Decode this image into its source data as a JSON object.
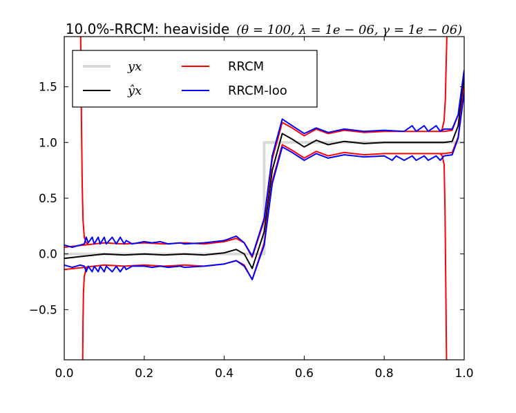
{
  "chart_data": {
    "type": "line",
    "title_text": "10.0%-RRCM: heaviside",
    "title_params": "(θ = 100, λ = 1e − 06, γ = 1e − 06)",
    "xlim": [
      0.0,
      1.0
    ],
    "ylim": [
      -0.95,
      1.95
    ],
    "x_ticks": [
      0.0,
      0.2,
      0.4,
      0.6,
      0.8,
      1.0
    ],
    "x_tick_labels": [
      "0.0",
      "0.2",
      "0.4",
      "0.6",
      "0.8",
      "1.0"
    ],
    "y_ticks": [
      -0.5,
      0.0,
      0.5,
      1.0,
      1.5
    ],
    "y_tick_labels": [
      "−0.5",
      "0.0",
      "0.5",
      "1.0",
      "1.5"
    ],
    "legend": [
      {
        "label": "y_x",
        "display": "yx",
        "color": "#d9d9d9"
      },
      {
        "label": "RRCM",
        "display": "RRCM",
        "color": "#ff0000"
      },
      {
        "label": "ŷ_x",
        "display": "ŷx",
        "color": "#000000"
      },
      {
        "label": "RRCM-loo",
        "display": "RRCM-loo",
        "color": "#0000ff"
      }
    ],
    "series": [
      {
        "name": "y_x",
        "color": "#d9d9d9",
        "x": [
          0.0,
          0.5,
          0.5,
          1.0
        ],
        "y": [
          0.0,
          0.0,
          1.0,
          1.0
        ]
      },
      {
        "name": "y_hat",
        "color": "#000000",
        "x": [
          0.0,
          0.05,
          0.1,
          0.15,
          0.2,
          0.25,
          0.3,
          0.35,
          0.4,
          0.43,
          0.45,
          0.47,
          0.5,
          0.52,
          0.545,
          0.57,
          0.6,
          0.63,
          0.66,
          0.7,
          0.75,
          0.8,
          0.85,
          0.9,
          0.95,
          0.97,
          0.985,
          1.0
        ],
        "y": [
          -0.04,
          -0.02,
          0.0,
          -0.01,
          0.0,
          -0.01,
          0.0,
          -0.01,
          0.01,
          0.04,
          0.0,
          -0.13,
          0.2,
          0.75,
          1.08,
          1.03,
          0.96,
          1.02,
          0.98,
          1.01,
          0.99,
          1.0,
          1.0,
          1.0,
          1.0,
          1.01,
          1.15,
          1.6
        ]
      },
      {
        "name": "RRCM_upper",
        "color": "#ff0000",
        "x": [
          0.0,
          0.05,
          0.1,
          0.15,
          0.2,
          0.25,
          0.3,
          0.35,
          0.4,
          0.43,
          0.45,
          0.47,
          0.5,
          0.52,
          0.545,
          0.57,
          0.6,
          0.63,
          0.66,
          0.7,
          0.75,
          0.8,
          0.85,
          0.9,
          0.95,
          0.97,
          0.985,
          1.0
        ],
        "y": [
          0.06,
          0.08,
          0.1,
          0.09,
          0.1,
          0.09,
          0.1,
          0.09,
          0.11,
          0.14,
          0.1,
          -0.03,
          0.3,
          0.85,
          1.18,
          1.13,
          1.06,
          1.12,
          1.08,
          1.11,
          1.09,
          1.1,
          1.1,
          1.1,
          1.1,
          1.11,
          1.25,
          1.65
        ]
      },
      {
        "name": "RRCM_lower",
        "color": "#ff0000",
        "x": [
          0.0,
          0.05,
          0.1,
          0.15,
          0.2,
          0.25,
          0.3,
          0.35,
          0.4,
          0.43,
          0.45,
          0.47,
          0.5,
          0.52,
          0.545,
          0.57,
          0.6,
          0.63,
          0.66,
          0.7,
          0.75,
          0.8,
          0.85,
          0.9,
          0.95,
          0.97,
          0.985,
          1.0
        ],
        "y": [
          -0.14,
          -0.12,
          -0.1,
          -0.11,
          -0.1,
          -0.11,
          -0.1,
          -0.11,
          -0.09,
          -0.06,
          -0.1,
          -0.23,
          0.1,
          0.65,
          0.98,
          0.93,
          0.86,
          0.92,
          0.88,
          0.91,
          0.89,
          0.9,
          0.9,
          0.9,
          0.9,
          0.91,
          1.05,
          1.5
        ]
      },
      {
        "name": "RRCM_left_divergence",
        "color": "#ff0000",
        "x": [
          0.041,
          0.043,
          0.045,
          0.047,
          0.05,
          0.055,
          0.06
        ],
        "y": [
          2.0,
          1.2,
          0.6,
          0.3,
          0.15,
          0.1,
          0.09
        ]
      },
      {
        "name": "RRCM_left_divergence_low",
        "color": "#ff0000",
        "x": [
          0.046,
          0.047,
          0.048,
          0.05,
          0.055,
          0.06
        ],
        "y": [
          -1.0,
          -0.6,
          -0.35,
          -0.2,
          -0.13,
          -0.12
        ]
      },
      {
        "name": "RRCM_right_divergence",
        "color": "#ff0000",
        "x": [
          0.94,
          0.945,
          0.95,
          0.953,
          0.955,
          0.957
        ],
        "y": [
          1.1,
          1.12,
          1.2,
          1.4,
          1.7,
          2.0
        ]
      },
      {
        "name": "RRCM_right_divergence_low",
        "color": "#ff0000",
        "x": [
          0.94,
          0.945,
          0.95,
          0.952,
          0.954,
          0.956
        ],
        "y": [
          0.9,
          0.88,
          0.8,
          0.4,
          -0.3,
          -1.0
        ]
      },
      {
        "name": "RRCM_loo_upper",
        "color": "#0000ff",
        "x": [
          0.0,
          0.02,
          0.04,
          0.05,
          0.055,
          0.06,
          0.07,
          0.075,
          0.085,
          0.09,
          0.1,
          0.105,
          0.12,
          0.13,
          0.14,
          0.15,
          0.155,
          0.17,
          0.2,
          0.22,
          0.24,
          0.26,
          0.29,
          0.3,
          0.35,
          0.4,
          0.43,
          0.45,
          0.47,
          0.5,
          0.52,
          0.545,
          0.57,
          0.6,
          0.63,
          0.66,
          0.7,
          0.75,
          0.8,
          0.85,
          0.87,
          0.88,
          0.9,
          0.91,
          0.93,
          0.94,
          0.95,
          0.97,
          0.985,
          1.0
        ],
        "y": [
          0.08,
          0.06,
          0.08,
          0.09,
          0.15,
          0.1,
          0.15,
          0.09,
          0.15,
          0.09,
          0.15,
          0.09,
          0.15,
          0.09,
          0.15,
          0.09,
          0.12,
          0.09,
          0.11,
          0.1,
          0.11,
          0.09,
          0.1,
          0.09,
          0.1,
          0.12,
          0.16,
          0.1,
          -0.02,
          0.32,
          0.88,
          1.21,
          1.15,
          1.08,
          1.13,
          1.09,
          1.12,
          1.1,
          1.11,
          1.1,
          1.15,
          1.1,
          1.15,
          1.1,
          1.15,
          1.1,
          1.12,
          1.12,
          1.25,
          1.65
        ]
      },
      {
        "name": "RRCM_loo_lower",
        "color": "#0000ff",
        "x": [
          0.0,
          0.02,
          0.04,
          0.05,
          0.055,
          0.06,
          0.07,
          0.075,
          0.085,
          0.09,
          0.1,
          0.105,
          0.12,
          0.13,
          0.14,
          0.15,
          0.155,
          0.17,
          0.2,
          0.22,
          0.24,
          0.26,
          0.29,
          0.3,
          0.35,
          0.4,
          0.43,
          0.45,
          0.47,
          0.5,
          0.52,
          0.545,
          0.57,
          0.6,
          0.63,
          0.66,
          0.7,
          0.75,
          0.8,
          0.82,
          0.83,
          0.85,
          0.87,
          0.88,
          0.9,
          0.91,
          0.93,
          0.94,
          0.95,
          0.97,
          0.985,
          1.0
        ],
        "y": [
          -0.1,
          -0.12,
          -0.1,
          -0.11,
          -0.16,
          -0.11,
          -0.16,
          -0.11,
          -0.16,
          -0.11,
          -0.16,
          -0.11,
          -0.16,
          -0.11,
          -0.16,
          -0.11,
          -0.14,
          -0.11,
          -0.11,
          -0.12,
          -0.11,
          -0.12,
          -0.11,
          -0.12,
          -0.11,
          -0.09,
          -0.06,
          -0.11,
          -0.23,
          0.08,
          0.63,
          0.96,
          0.91,
          0.84,
          0.9,
          0.86,
          0.89,
          0.87,
          0.88,
          0.84,
          0.88,
          0.84,
          0.88,
          0.84,
          0.88,
          0.84,
          0.88,
          0.84,
          0.88,
          0.89,
          1.04,
          1.45
        ]
      }
    ]
  }
}
